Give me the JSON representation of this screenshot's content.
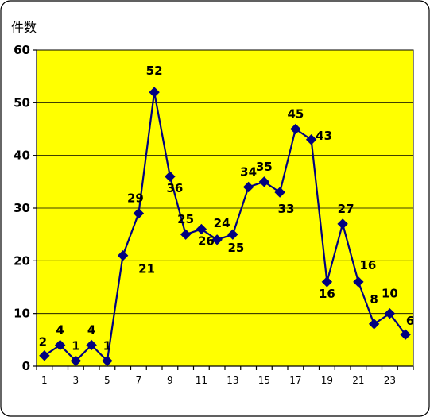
{
  "chart_data": {
    "type": "line",
    "ylabel": "件数",
    "ylim": [
      0,
      60
    ],
    "yticks": [
      0,
      10,
      20,
      30,
      40,
      50,
      60
    ],
    "x": [
      1,
      2,
      3,
      4,
      5,
      6,
      7,
      8,
      9,
      10,
      11,
      12,
      13,
      14,
      15,
      16,
      17,
      18,
      19,
      20,
      21,
      22,
      23,
      24
    ],
    "xtick_labels": [
      "1",
      "3",
      "5",
      "7",
      "9",
      "11",
      "13",
      "15",
      "17",
      "19",
      "21",
      "23"
    ],
    "grid": true,
    "series": [
      {
        "values": [
          2,
          4,
          1,
          4,
          1,
          21,
          29,
          52,
          36,
          25,
          26,
          24,
          25,
          34,
          35,
          33,
          45,
          43,
          16,
          27,
          16,
          8,
          10,
          6
        ],
        "line_color": "#000080",
        "marker": "diamond"
      }
    ],
    "background_color": "#ffff00"
  }
}
